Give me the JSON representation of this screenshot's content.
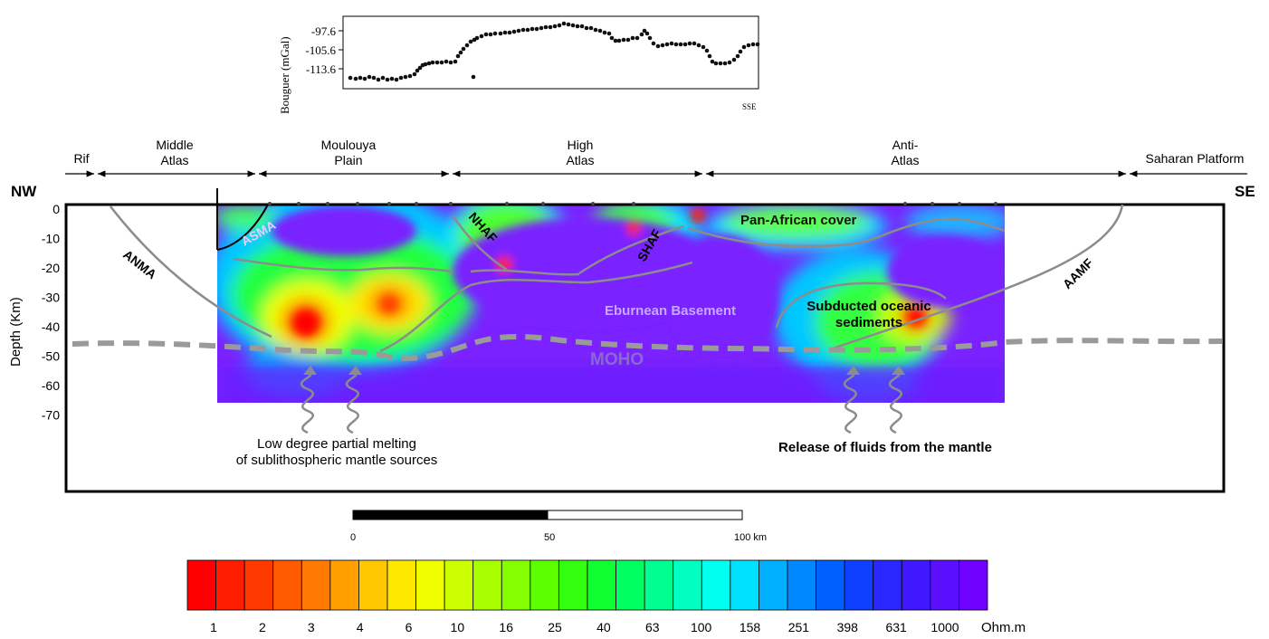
{
  "bouguer": {
    "ylabel": "Bouguer (mGal)",
    "ticks": [
      "-97.6",
      "-105.6",
      "-113.6"
    ],
    "corner_label": "SSE",
    "points": [
      [
        387,
        86
      ],
      [
        393,
        87
      ],
      [
        398,
        86
      ],
      [
        403,
        87
      ],
      [
        408,
        85
      ],
      [
        413,
        86
      ],
      [
        418,
        88
      ],
      [
        423,
        86
      ],
      [
        428,
        88
      ],
      [
        433,
        87
      ],
      [
        438,
        88
      ],
      [
        443,
        86
      ],
      [
        448,
        85
      ],
      [
        453,
        84
      ],
      [
        458,
        82
      ],
      [
        461,
        78
      ],
      [
        464,
        75
      ],
      [
        467,
        72
      ],
      [
        470,
        71
      ],
      [
        474,
        70
      ],
      [
        478,
        69
      ],
      [
        483,
        69
      ],
      [
        488,
        69
      ],
      [
        493,
        68
      ],
      [
        498,
        69
      ],
      [
        503,
        68
      ],
      [
        506,
        62
      ],
      [
        509,
        58
      ],
      [
        512,
        54
      ],
      [
        516,
        50
      ],
      [
        520,
        46
      ],
      [
        524,
        44
      ],
      [
        527,
        42
      ],
      [
        532,
        40
      ],
      [
        537,
        38
      ],
      [
        542,
        38
      ],
      [
        547,
        37
      ],
      [
        553,
        37
      ],
      [
        558,
        36
      ],
      [
        563,
        36
      ],
      [
        568,
        35
      ],
      [
        573,
        34
      ],
      [
        578,
        33
      ],
      [
        583,
        33
      ],
      [
        588,
        32
      ],
      [
        593,
        32
      ],
      [
        598,
        31
      ],
      [
        603,
        30
      ],
      [
        608,
        30
      ],
      [
        613,
        29
      ],
      [
        618,
        28
      ],
      [
        623,
        26
      ],
      [
        628,
        27
      ],
      [
        633,
        28
      ],
      [
        638,
        29
      ],
      [
        643,
        29
      ],
      [
        648,
        31
      ],
      [
        653,
        31
      ],
      [
        658,
        33
      ],
      [
        663,
        34
      ],
      [
        668,
        36
      ],
      [
        673,
        37
      ],
      [
        676,
        42
      ],
      [
        680,
        45
      ],
      [
        684,
        45
      ],
      [
        689,
        44
      ],
      [
        694,
        44
      ],
      [
        699,
        42
      ],
      [
        704,
        42
      ],
      [
        709,
        38
      ],
      [
        712,
        34
      ],
      [
        715,
        37
      ],
      [
        718,
        42
      ],
      [
        722,
        48
      ],
      [
        727,
        51
      ],
      [
        732,
        50
      ],
      [
        737,
        49
      ],
      [
        742,
        48
      ],
      [
        747,
        49
      ],
      [
        752,
        49
      ],
      [
        757,
        49
      ],
      [
        762,
        48
      ],
      [
        767,
        48
      ],
      [
        772,
        50
      ],
      [
        777,
        52
      ],
      [
        781,
        56
      ],
      [
        784,
        62
      ],
      [
        787,
        68
      ],
      [
        791,
        70
      ],
      [
        796,
        70
      ],
      [
        801,
        70
      ],
      [
        806,
        69
      ],
      [
        811,
        66
      ],
      [
        815,
        62
      ],
      [
        818,
        57
      ],
      [
        822,
        52
      ],
      [
        827,
        50
      ],
      [
        832,
        49
      ],
      [
        837,
        49
      ],
      [
        523,
        85
      ]
    ]
  },
  "regions": [
    {
      "label": "Rif"
    },
    {
      "label": "Middle\nAtlas"
    },
    {
      "label": "Moulouya\nPlain"
    },
    {
      "label": "High\nAtlas"
    },
    {
      "label": "Anti-\nAtlas"
    },
    {
      "label": "Saharan Platform"
    }
  ],
  "compass": {
    "left": "NW",
    "right": "SE"
  },
  "depth_axis": {
    "label": "Depth (Km)",
    "ticks": [
      "0",
      "-10",
      "-20",
      "-30",
      "-40",
      "-50",
      "-60",
      "-70"
    ]
  },
  "faults": [
    "ANMA",
    "ASMA",
    "NHAF",
    "SHAF",
    "AAMF"
  ],
  "units": {
    "pan_african": "Pan-African cover",
    "eburnean": "Eburnean Basement",
    "moho": "MOHO",
    "subducted": "Subducted oceanic\nsediments"
  },
  "annotations": {
    "melting": "Low degree partial melting\nof sublithospheric mantle sources",
    "fluids": "Release of fluids from the mantle"
  },
  "scalebar": {
    "labels": [
      "0",
      "50",
      "100 km"
    ]
  },
  "colorbar": {
    "tick_labels": [
      "1",
      "2",
      "3",
      "4",
      "6",
      "10",
      "16",
      "25",
      "40",
      "63",
      "100",
      "158",
      "251",
      "398",
      "631",
      "1000"
    ],
    "unit": "Ohm.m",
    "colors": [
      "#ff0000",
      "#ff1f00",
      "#ff3a00",
      "#ff5a00",
      "#ff7a00",
      "#ffa000",
      "#ffc800",
      "#ffe800",
      "#f0ff00",
      "#ccff00",
      "#a8ff00",
      "#84ff00",
      "#5cff00",
      "#33ff10",
      "#10ff30",
      "#00ff60",
      "#00ff90",
      "#00ffc0",
      "#00ffee",
      "#00e0ff",
      "#00b0ff",
      "#0088ff",
      "#0060ff",
      "#1040ff",
      "#2a28ff",
      "#4018ff",
      "#5a10ff",
      "#7000ff"
    ]
  },
  "colors": {
    "low_resistivity": "#ff0000",
    "high_resistivity": "#7a22ff",
    "boundary_lines": "#8c8c8c",
    "moho_line": "#999999"
  }
}
